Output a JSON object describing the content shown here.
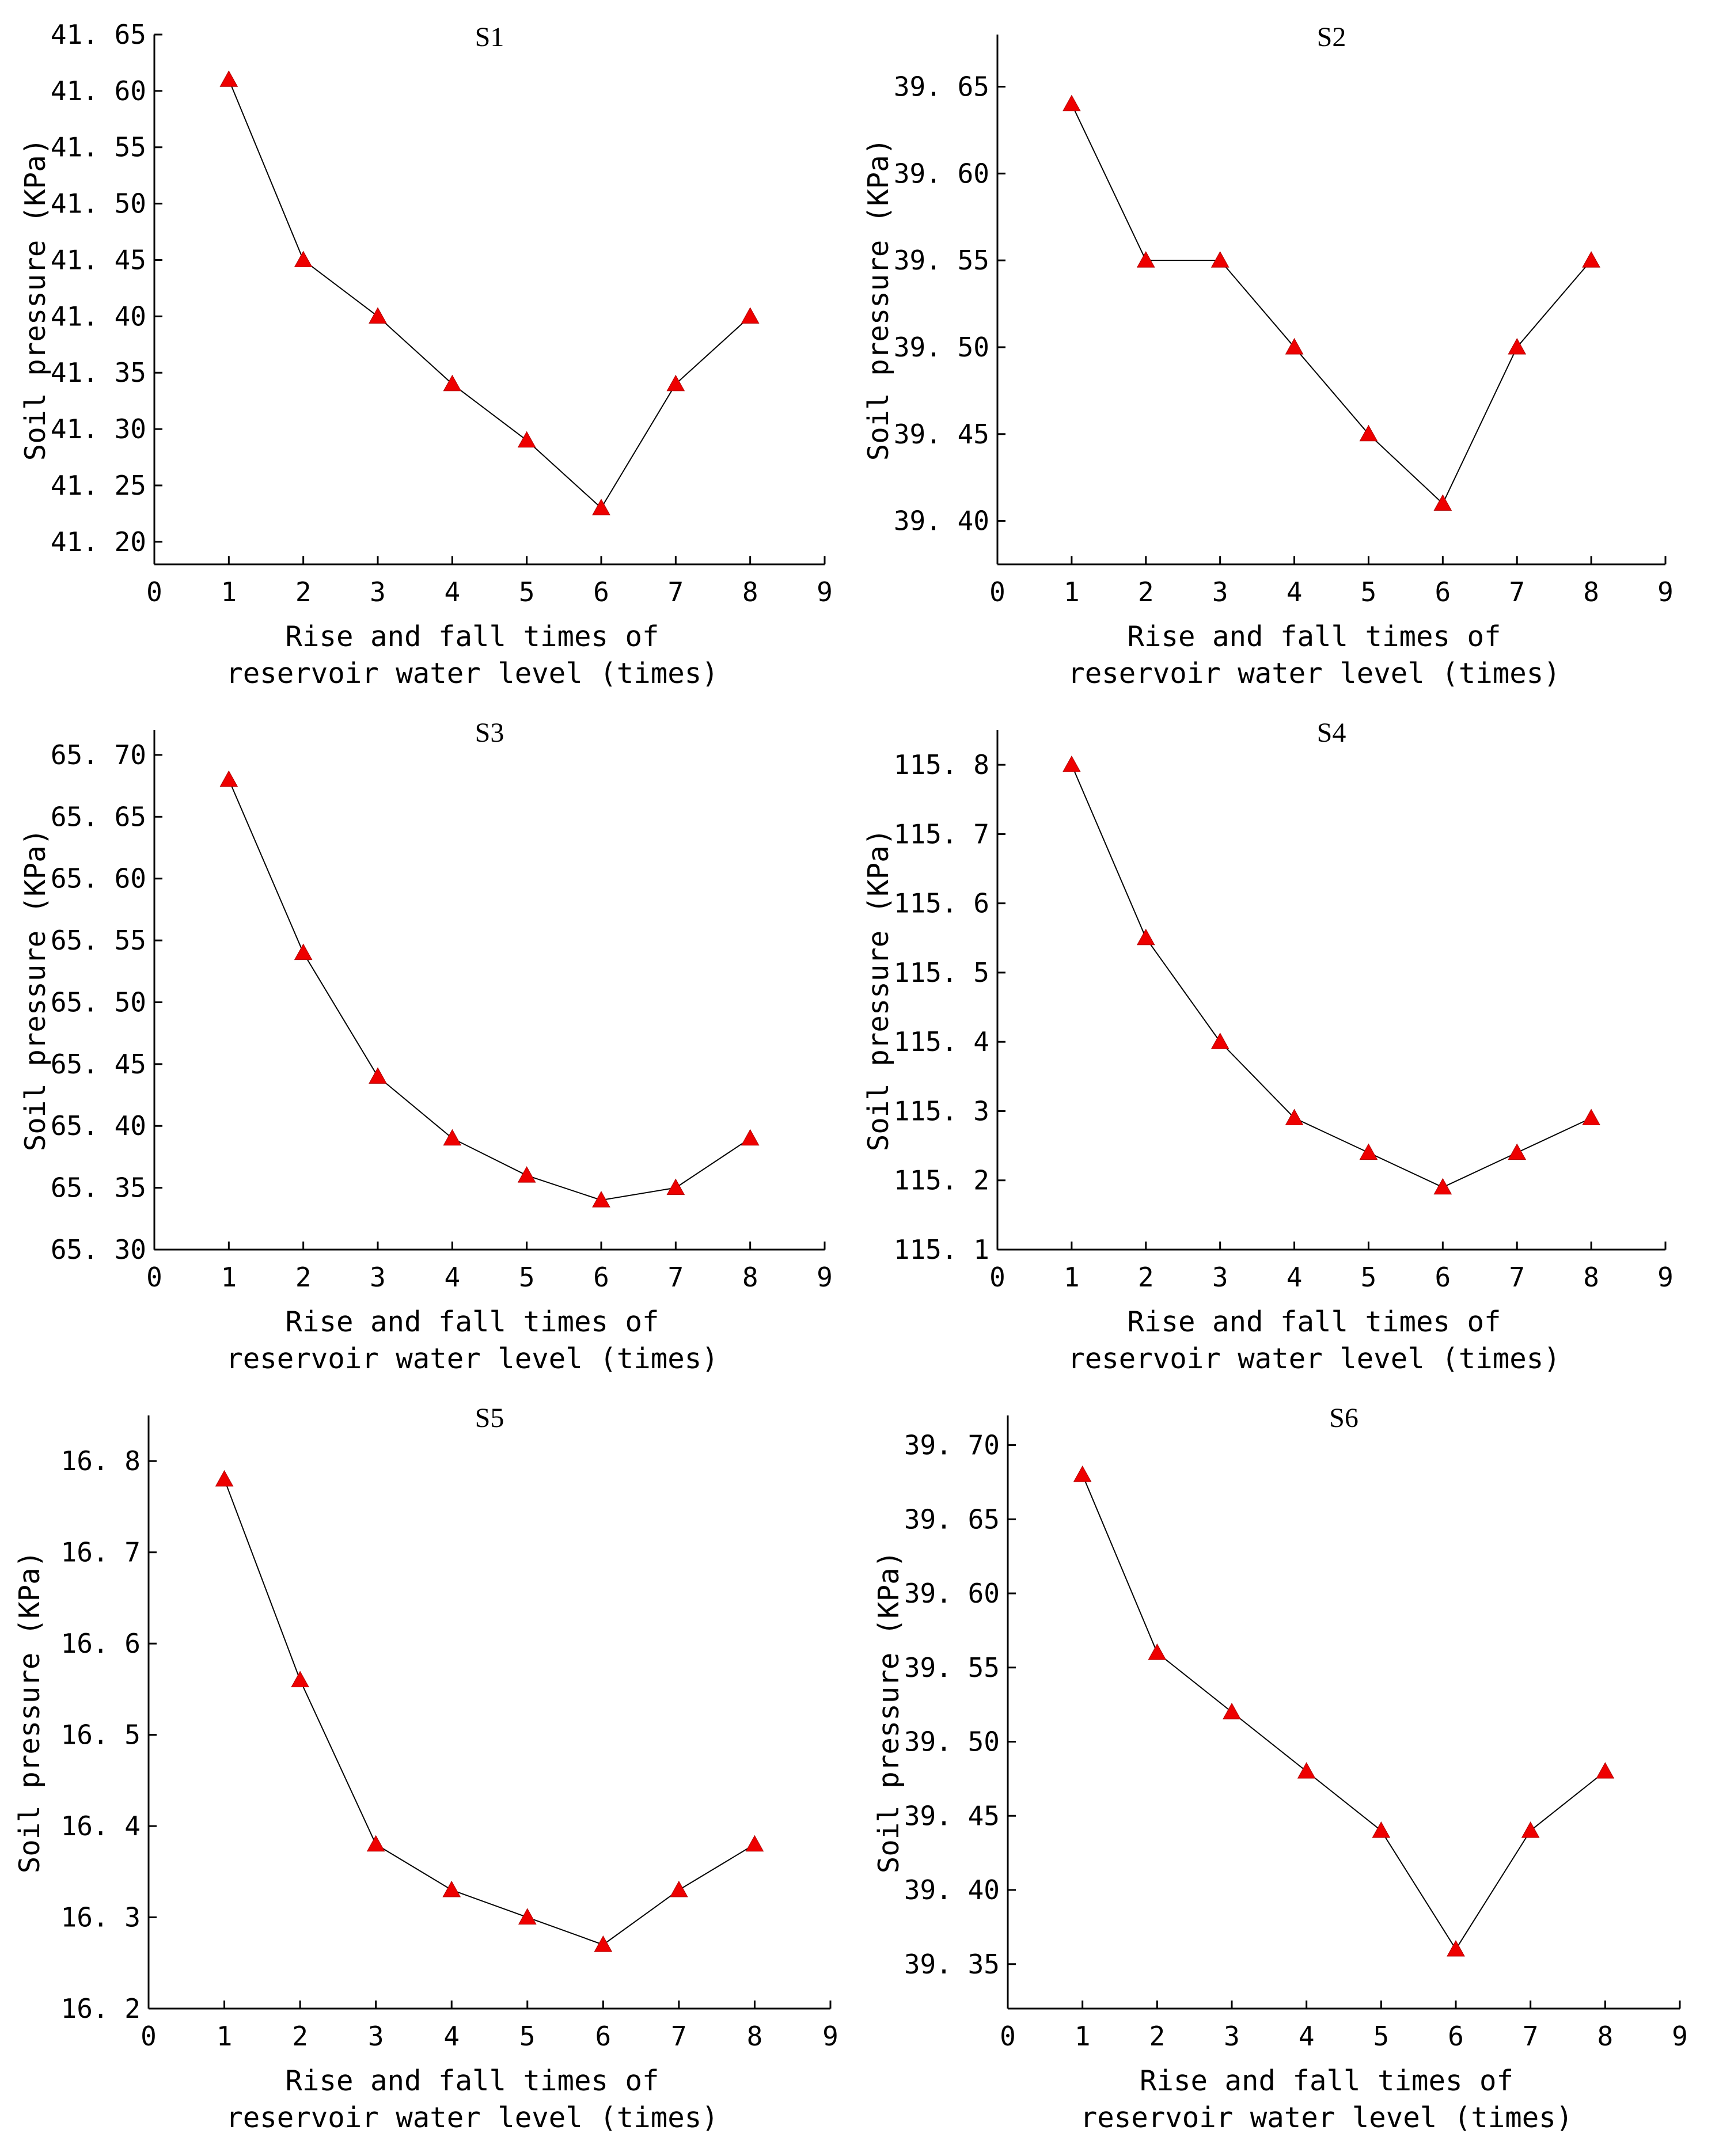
{
  "chart_data": [
    {
      "type": "line",
      "title": "S1",
      "xlabel": [
        "Rise and fall times of",
        "reservoir water level (times)"
      ],
      "ylabel": "Soil pressure (KPa)",
      "xlim": [
        0,
        9
      ],
      "ylim": [
        41.18,
        41.65
      ],
      "xticks": [
        "0",
        "1",
        "2",
        "3",
        "4",
        "5",
        "6",
        "7",
        "8",
        "9"
      ],
      "yticks": [
        41.2,
        41.25,
        41.3,
        41.35,
        41.4,
        41.45,
        41.5,
        41.55,
        41.6,
        41.65
      ],
      "ytick_labels": [
        "41. 20",
        "41. 25",
        "41. 30",
        "41. 35",
        "41. 40",
        "41. 45",
        "41. 50",
        "41. 55",
        "41. 60",
        "41. 65"
      ],
      "x": [
        1,
        2,
        3,
        4,
        5,
        6,
        7,
        8
      ],
      "y": [
        41.61,
        41.45,
        41.4,
        41.34,
        41.29,
        41.23,
        41.34,
        41.4
      ],
      "marker_color": "#ee0000"
    },
    {
      "type": "line",
      "title": "S2",
      "xlabel": [
        "Rise and fall times of",
        "reservoir water level (times)"
      ],
      "ylabel": "Soil pressure (KPa)",
      "xlim": [
        0,
        9
      ],
      "ylim": [
        39.375,
        39.68
      ],
      "xticks": [
        "0",
        "1",
        "2",
        "3",
        "4",
        "5",
        "6",
        "7",
        "8",
        "9"
      ],
      "yticks": [
        39.4,
        39.45,
        39.5,
        39.55,
        39.6,
        39.65
      ],
      "ytick_labels": [
        "39. 40",
        "39. 45",
        "39. 50",
        "39. 55",
        "39. 60",
        "39. 65"
      ],
      "x": [
        1,
        2,
        3,
        4,
        5,
        6,
        7,
        8
      ],
      "y": [
        39.64,
        39.55,
        39.55,
        39.5,
        39.45,
        39.41,
        39.5,
        39.55
      ],
      "marker_color": "#ee0000"
    },
    {
      "type": "line",
      "title": "S3",
      "xlabel": [
        "Rise and fall times of",
        "reservoir water level (times)"
      ],
      "ylabel": "Soil pressure (KPa)",
      "xlim": [
        0,
        9
      ],
      "ylim": [
        65.3,
        65.72
      ],
      "xticks": [
        "0",
        "1",
        "2",
        "3",
        "4",
        "5",
        "6",
        "7",
        "8",
        "9"
      ],
      "yticks": [
        65.3,
        65.35,
        65.4,
        65.45,
        65.5,
        65.55,
        65.6,
        65.65,
        65.7
      ],
      "ytick_labels": [
        "65. 30",
        "65. 35",
        "65. 40",
        "65. 45",
        "65. 50",
        "65. 55",
        "65. 60",
        "65. 65",
        "65. 70"
      ],
      "x": [
        1,
        2,
        3,
        4,
        5,
        6,
        7,
        8
      ],
      "y": [
        65.68,
        65.54,
        65.44,
        65.39,
        65.36,
        65.34,
        65.35,
        65.39
      ],
      "marker_color": "#ee0000"
    },
    {
      "type": "line",
      "title": "S4",
      "xlabel": [
        "Rise and fall times of",
        "reservoir water level (times)"
      ],
      "ylabel": "Soil pressure (KPa)",
      "xlim": [
        0,
        9
      ],
      "ylim": [
        115.1,
        115.85
      ],
      "xticks": [
        "0",
        "1",
        "2",
        "3",
        "4",
        "5",
        "6",
        "7",
        "8",
        "9"
      ],
      "yticks": [
        115.1,
        115.2,
        115.3,
        115.4,
        115.5,
        115.6,
        115.7,
        115.8
      ],
      "ytick_labels": [
        "115. 1",
        "115. 2",
        "115. 3",
        "115. 4",
        "115. 5",
        "115. 6",
        "115. 7",
        "115. 8"
      ],
      "x": [
        1,
        2,
        3,
        4,
        5,
        6,
        7,
        8
      ],
      "y": [
        115.8,
        115.55,
        115.4,
        115.29,
        115.24,
        115.19,
        115.24,
        115.29
      ],
      "marker_color": "#ee0000"
    },
    {
      "type": "line",
      "title": "S5",
      "xlabel": [
        "Rise and fall times of",
        "reservoir water level (times)"
      ],
      "ylabel": "Soil pressure (KPa)",
      "xlim": [
        0,
        9
      ],
      "ylim": [
        16.2,
        16.85
      ],
      "xticks": [
        "0",
        "1",
        "2",
        "3",
        "4",
        "5",
        "6",
        "7",
        "8",
        "9"
      ],
      "yticks": [
        16.2,
        16.3,
        16.4,
        16.5,
        16.6,
        16.7,
        16.8
      ],
      "ytick_labels": [
        "16. 2",
        "16. 3",
        "16. 4",
        "16. 5",
        "16. 6",
        "16. 7",
        "16. 8"
      ],
      "x": [
        1,
        2,
        3,
        4,
        5,
        6,
        7,
        8
      ],
      "y": [
        16.78,
        16.56,
        16.38,
        16.33,
        16.3,
        16.27,
        16.33,
        16.38
      ],
      "marker_color": "#ee0000"
    },
    {
      "type": "line",
      "title": "S6",
      "xlabel": [
        "Rise and fall times of",
        "reservoir water level (times)"
      ],
      "ylabel": "Soil pressure (KPa)",
      "xlim": [
        0,
        9
      ],
      "ylim": [
        39.32,
        39.72
      ],
      "xticks": [
        "0",
        "1",
        "2",
        "3",
        "4",
        "5",
        "6",
        "7",
        "8",
        "9"
      ],
      "yticks": [
        39.35,
        39.4,
        39.45,
        39.5,
        39.55,
        39.6,
        39.65,
        39.7
      ],
      "ytick_labels": [
        "39. 35",
        "39. 40",
        "39. 45",
        "39. 50",
        "39. 55",
        "39. 60",
        "39. 65",
        "39. 70"
      ],
      "x": [
        1,
        2,
        3,
        4,
        5,
        6,
        7,
        8
      ],
      "y": [
        39.68,
        39.56,
        39.52,
        39.48,
        39.44,
        39.36,
        39.44,
        39.48
      ],
      "marker_color": "#ee0000"
    }
  ]
}
